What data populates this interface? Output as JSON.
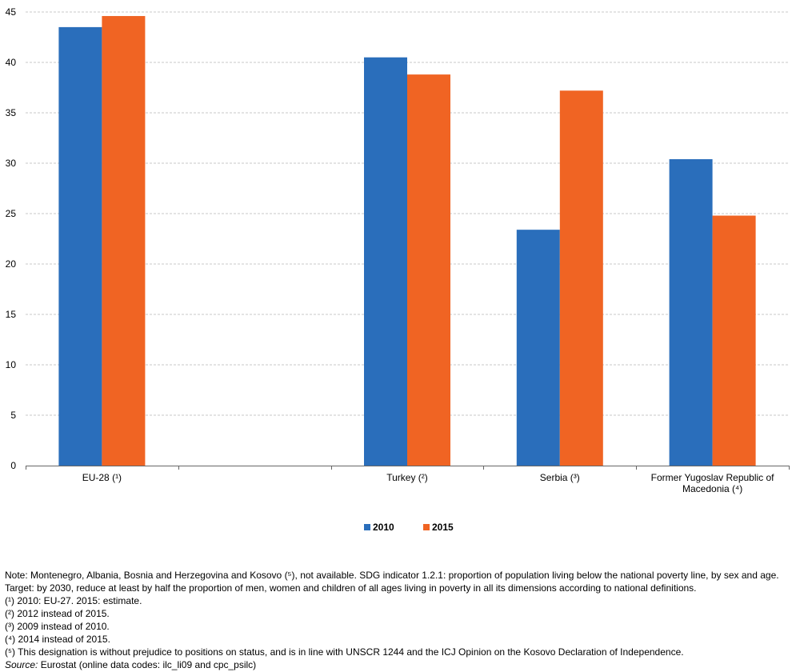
{
  "chart_data": {
    "type": "bar",
    "title": "",
    "xlabel": "",
    "ylabel": "",
    "ylim": [
      0,
      45
    ],
    "yticks": [
      0,
      5,
      10,
      15,
      20,
      25,
      30,
      35,
      40,
      45
    ],
    "grid": true,
    "legend_position": "bottom-center",
    "categories": [
      "EU-28 (¹)",
      "",
      "Turkey (²)",
      "Serbia (³)",
      "Former Yugoslav Republic of Macedonia (⁴)"
    ],
    "category_label_lines": [
      [
        "EU-28 (¹)"
      ],
      [
        ""
      ],
      [
        "Turkey (²)"
      ],
      [
        "Serbia (³)"
      ],
      [
        "Former Yugoslav Republic of",
        "Macedonia (⁴)"
      ]
    ],
    "series": [
      {
        "name": "2010",
        "color": "#2a6ebb",
        "values": [
          43.5,
          null,
          40.5,
          23.4,
          30.4
        ]
      },
      {
        "name": "2015",
        "color": "#f06423",
        "values": [
          44.6,
          null,
          38.8,
          37.2,
          24.8
        ]
      }
    ]
  },
  "notes": {
    "main": "Note: Montenegro, Albania, Bosnia and Herzegovina and Kosovo (⁵), not available. SDG indicator 1.2.1: proportion of population living below the national poverty line, by sex and age. Target: by 2030, reduce at least by half the proportion of men, women and children of all ages living in poverty in all its dimensions according to national definitions.",
    "footnotes": [
      "(¹) 2010: EU-27. 2015: estimate.",
      "(²) 2012 instead of 2015.",
      "(³) 2009 instead of 2010.",
      "(⁴) 2014 instead of 2015.",
      "(⁵) This designation is without prejudice to positions on status, and is in line with UNSCR 1244 and the ICJ Opinion on the Kosovo Declaration of Independence."
    ],
    "source_label": "Source:",
    "source_text": " Eurostat (online data codes: ilc_li09 and cpc_psilc)"
  }
}
